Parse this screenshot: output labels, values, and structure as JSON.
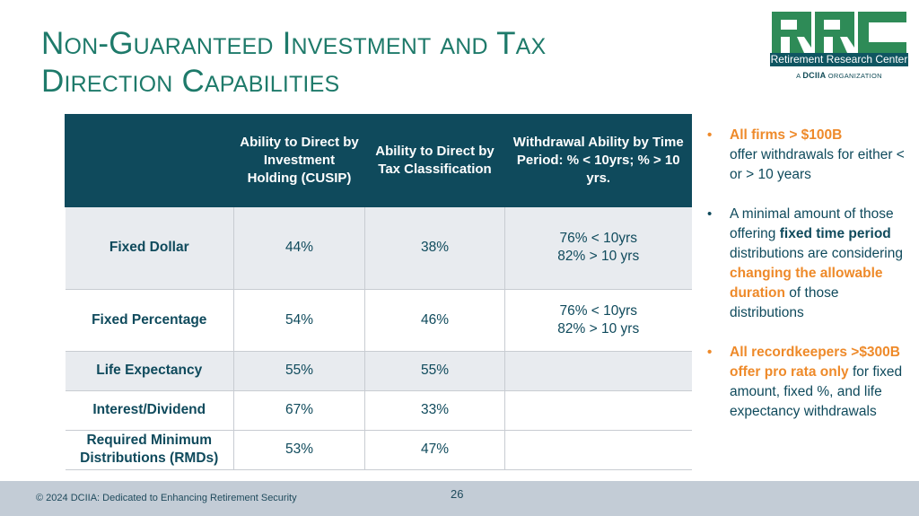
{
  "slide": {
    "title_line1": "Non-Guaranteed Investment and Tax",
    "title_line2": "Direction Capabilities"
  },
  "logo": {
    "letters": "RRC",
    "name": "Retirement Research Center",
    "org_prefix": "A",
    "org_brand": "DCIIA",
    "org_suffix": "ORGANIZATION",
    "colors": {
      "green": "#2e8b57",
      "teal": "#0f5561"
    }
  },
  "table": {
    "headers": [
      "",
      "Ability to Direct by Investment Holding (CUSIP)",
      "Ability to Direct by Tax Classification",
      "Withdrawal Ability by Time Period: % < 10yrs; % > 10 yrs."
    ],
    "rows": [
      {
        "label": "Fixed Dollar",
        "cusip": "44%",
        "tax": "38%",
        "withdraw_a": "76% < 10yrs",
        "withdraw_b": "82% > 10 yrs"
      },
      {
        "label": "Fixed Percentage",
        "cusip": "54%",
        "tax": "46%",
        "withdraw_a": "76% < 10yrs",
        "withdraw_b": "82% > 10 yrs"
      },
      {
        "label": "Life Expectancy",
        "cusip": "55%",
        "tax": "55%",
        "withdraw_a": "",
        "withdraw_b": ""
      },
      {
        "label": "Interest/Dividend",
        "cusip": "67%",
        "tax": "33%",
        "withdraw_a": "",
        "withdraw_b": ""
      },
      {
        "label": "Required Minimum Distributions (RMDs)",
        "cusip": "53%",
        "tax": "47%",
        "withdraw_a": "",
        "withdraw_b": ""
      }
    ]
  },
  "bullets": {
    "b1": {
      "highlight": "All firms > $100B",
      "rest": "offer withdrawals for either < or > 10 years"
    },
    "b2": {
      "t1": "A minimal amount of those offering ",
      "bold": "fixed time period",
      "t2": " distributions are considering ",
      "highlight": "changing the allowable duration",
      "t3": " of those distributions"
    },
    "b3": {
      "highlight": "All recordkeepers >$300B offer pro rata only",
      "rest": " for fixed amount, fixed %, and life expectancy withdrawals"
    }
  },
  "footer": {
    "copyright": "© 2024 DCIIA: Dedicated to Enhancing Retirement Security",
    "page_number": "26"
  },
  "colors": {
    "title": "#1e7a6a",
    "header_bg": "#0f4a5c",
    "row_shade": "#e8ebef",
    "accent_orange": "#ee8a2a",
    "footer_bg": "#c3ccd6"
  }
}
